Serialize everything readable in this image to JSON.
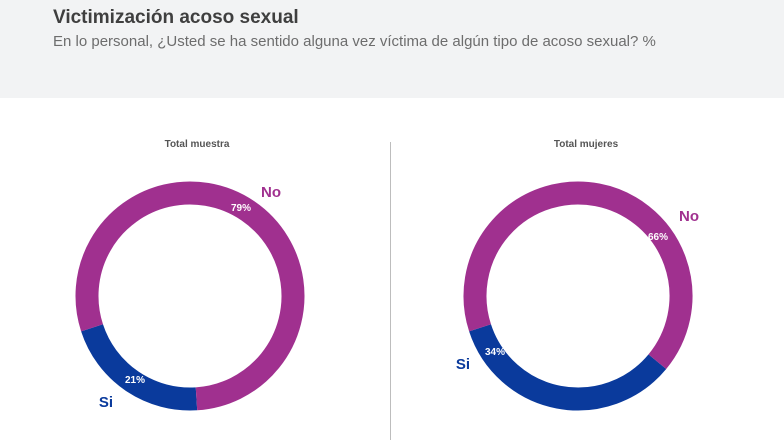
{
  "header": {
    "title": "Victimización acoso sexual",
    "subtitle": "En lo personal, ¿Usted se ha sentido alguna vez víctima de algún tipo de acoso sexual? %"
  },
  "colors": {
    "No": "#a0308f",
    "Si": "#0a3a9c"
  },
  "chart_data": [
    {
      "type": "pie",
      "title": "Total muestra",
      "donut": true,
      "slices": [
        {
          "label": "No",
          "value": 79,
          "value_label": "79%"
        },
        {
          "label": "Si",
          "value": 21,
          "value_label": "21%"
        }
      ]
    },
    {
      "type": "pie",
      "title": "Total mujeres",
      "donut": true,
      "slices": [
        {
          "label": "No",
          "value": 66,
          "value_label": "66%"
        },
        {
          "label": "Si",
          "value": 34,
          "value_label": "34%"
        }
      ]
    }
  ]
}
